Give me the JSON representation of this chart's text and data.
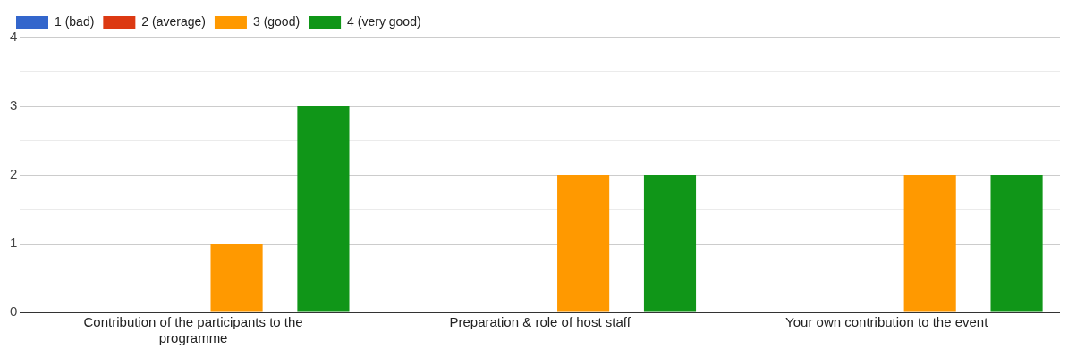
{
  "chart_data": {
    "type": "bar",
    "categories": [
      "Contribution of the participants to the programme",
      "Preparation & role of host staff",
      "Your own contribution to the event"
    ],
    "series": [
      {
        "name": "1 (bad)",
        "color": "#3366cc",
        "values": [
          0,
          0,
          0
        ]
      },
      {
        "name": "2 (average)",
        "color": "#dc3912",
        "values": [
          0,
          0,
          0
        ]
      },
      {
        "name": "3 (good)",
        "color": "#ff9900",
        "values": [
          1,
          2,
          2
        ]
      },
      {
        "name": "4 (very good)",
        "color": "#109618",
        "values": [
          3,
          2,
          2
        ]
      }
    ],
    "ylim": [
      0,
      4
    ],
    "yticks": [
      0,
      {
        "value": 0.5,
        "label": null
      },
      1,
      {
        "value": 1.5,
        "label": null
      },
      2,
      {
        "value": 2.5,
        "label": null
      },
      3,
      {
        "value": 3.5,
        "label": null
      },
      4
    ],
    "grid": "y",
    "legend": "top left"
  }
}
